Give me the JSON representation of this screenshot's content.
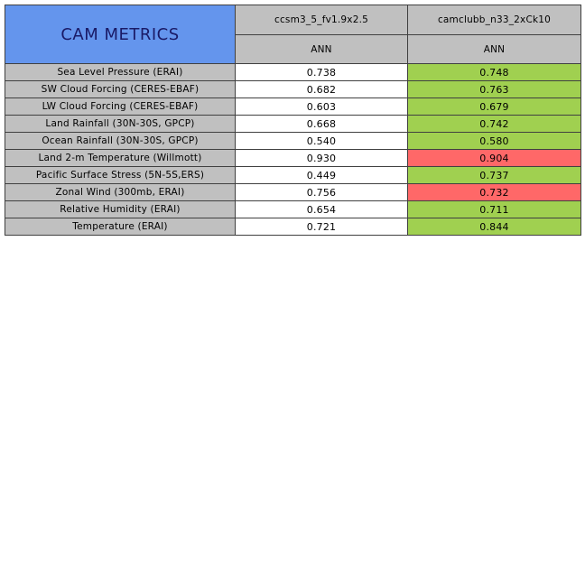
{
  "chart_data": {
    "type": "table",
    "title": "CAM METRICS",
    "columns": [
      "ccsm3_5_fv1.9x2.5",
      "camclubb_n33_2xCk10"
    ],
    "season": "ANN",
    "colors": {
      "title_bg": "#6495ed",
      "header_bg": "#c0c0c0",
      "better": "#a0d050",
      "worse": "#ff6868",
      "neutral": "#ffffff"
    },
    "rows": [
      {
        "name": "Sea Level Pressure (ERAI)",
        "values": [
          "0.738",
          "0.748"
        ],
        "status": [
          "neutral",
          "better"
        ]
      },
      {
        "name": "SW Cloud Forcing (CERES-EBAF)",
        "values": [
          "0.682",
          "0.763"
        ],
        "status": [
          "neutral",
          "better"
        ]
      },
      {
        "name": "LW Cloud Forcing (CERES-EBAF)",
        "values": [
          "0.603",
          "0.679"
        ],
        "status": [
          "neutral",
          "better"
        ]
      },
      {
        "name": "Land Rainfall (30N-30S, GPCP)",
        "values": [
          "0.668",
          "0.742"
        ],
        "status": [
          "neutral",
          "better"
        ]
      },
      {
        "name": "Ocean Rainfall (30N-30S, GPCP)",
        "values": [
          "0.540",
          "0.580"
        ],
        "status": [
          "neutral",
          "better"
        ]
      },
      {
        "name": "Land 2-m Temperature (Willmott)",
        "values": [
          "0.930",
          "0.904"
        ],
        "status": [
          "neutral",
          "worse"
        ]
      },
      {
        "name": "Pacific Surface Stress (5N-5S,ERS)",
        "values": [
          "0.449",
          "0.737"
        ],
        "status": [
          "neutral",
          "better"
        ]
      },
      {
        "name": "Zonal Wind (300mb, ERAI)",
        "values": [
          "0.756",
          "0.732"
        ],
        "status": [
          "neutral",
          "worse"
        ]
      },
      {
        "name": "Relative Humidity (ERAI)",
        "values": [
          "0.654",
          "0.711"
        ],
        "status": [
          "neutral",
          "better"
        ]
      },
      {
        "name": "Temperature (ERAI)",
        "values": [
          "0.721",
          "0.844"
        ],
        "status": [
          "neutral",
          "better"
        ]
      }
    ]
  }
}
